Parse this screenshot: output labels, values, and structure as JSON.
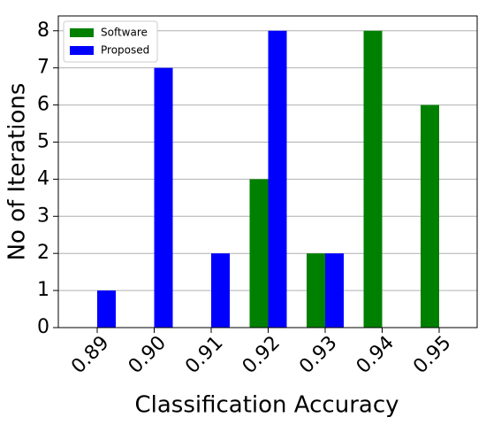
{
  "chart_data": {
    "type": "bar",
    "categories": [
      "0.89",
      "0.90",
      "0.91",
      "0.92",
      "0.93",
      "0.94",
      "0.95"
    ],
    "series": [
      {
        "name": "Software",
        "color": "#008000",
        "values": [
          0,
          0,
          0,
          4,
          2,
          8,
          6
        ]
      },
      {
        "name": "Proposed",
        "color": "#0000ff",
        "values": [
          1,
          7,
          2,
          8,
          2,
          0,
          0
        ]
      }
    ],
    "xlabel": "Classification Accuracy",
    "ylabel": "No of Iterations",
    "ylim": [
      0,
      8.4
    ],
    "yticks": [
      0,
      1,
      2,
      3,
      4,
      5,
      6,
      7,
      8
    ],
    "grid": true,
    "legend": "upper left"
  }
}
